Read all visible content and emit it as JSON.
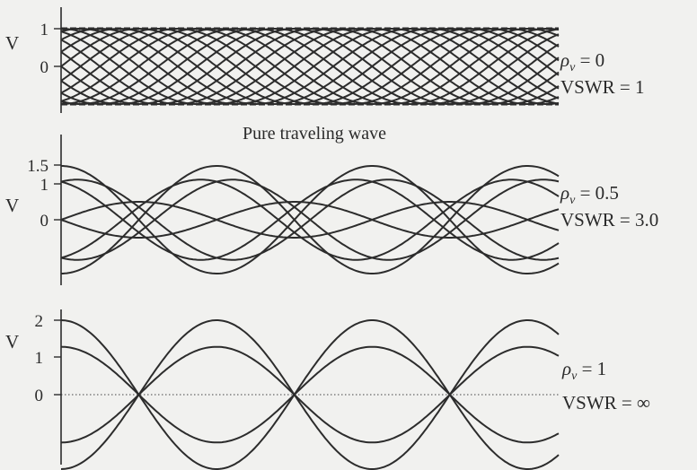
{
  "colors": {
    "curve": "#2c2c2c",
    "axis": "#2c2c2c",
    "background": "#f1f1ef"
  },
  "chart_data": [
    {
      "type": "line",
      "ylabel": "V",
      "xlim": [
        0,
        3.2
      ],
      "ylim": [
        -1,
        1
      ],
      "yticks": [
        {
          "value": 1,
          "label": "1"
        },
        {
          "value": 0,
          "label": "0"
        }
      ],
      "reflection": 0,
      "phases_deg": [
        0,
        22.5,
        45,
        67.5,
        90,
        112.5,
        135,
        157.5,
        180,
        202.5,
        225,
        247.5,
        270,
        292.5,
        315,
        337.5
      ],
      "envelope_dashed": true,
      "side_labels": {
        "rho_text": "= 0",
        "vswr_text": "VSWR = 1"
      },
      "caption": "Pure traveling wave"
    },
    {
      "type": "line",
      "ylabel": "V",
      "xlim": [
        0,
        3.2
      ],
      "ylim": [
        -1.5,
        1.5
      ],
      "yticks": [
        {
          "value": 1.5,
          "label": "1.5"
        },
        {
          "value": 1,
          "label": "1"
        },
        {
          "value": 0,
          "label": "0"
        }
      ],
      "reflection": 0.5,
      "phases_deg": [
        0,
        45,
        90,
        135,
        180,
        225,
        270,
        315
      ],
      "envelope_dashed": false,
      "side_labels": {
        "rho_text": "= 0.5",
        "vswr_text": "VSWR = 3.0"
      }
    },
    {
      "type": "line",
      "ylabel": "V",
      "xlim": [
        0,
        3.2
      ],
      "ylim": [
        -2,
        2
      ],
      "yticks": [
        {
          "value": 2,
          "label": "2"
        },
        {
          "value": 1,
          "label": "1"
        },
        {
          "value": 0,
          "label": "0"
        }
      ],
      "reflection": 1,
      "phases_deg": [
        0,
        50,
        130,
        180
      ],
      "envelope_dashed": false,
      "zero_line_dotted": true,
      "side_labels": {
        "rho_text": "= 1",
        "vswr_text": "VSWR = ∞"
      }
    }
  ]
}
